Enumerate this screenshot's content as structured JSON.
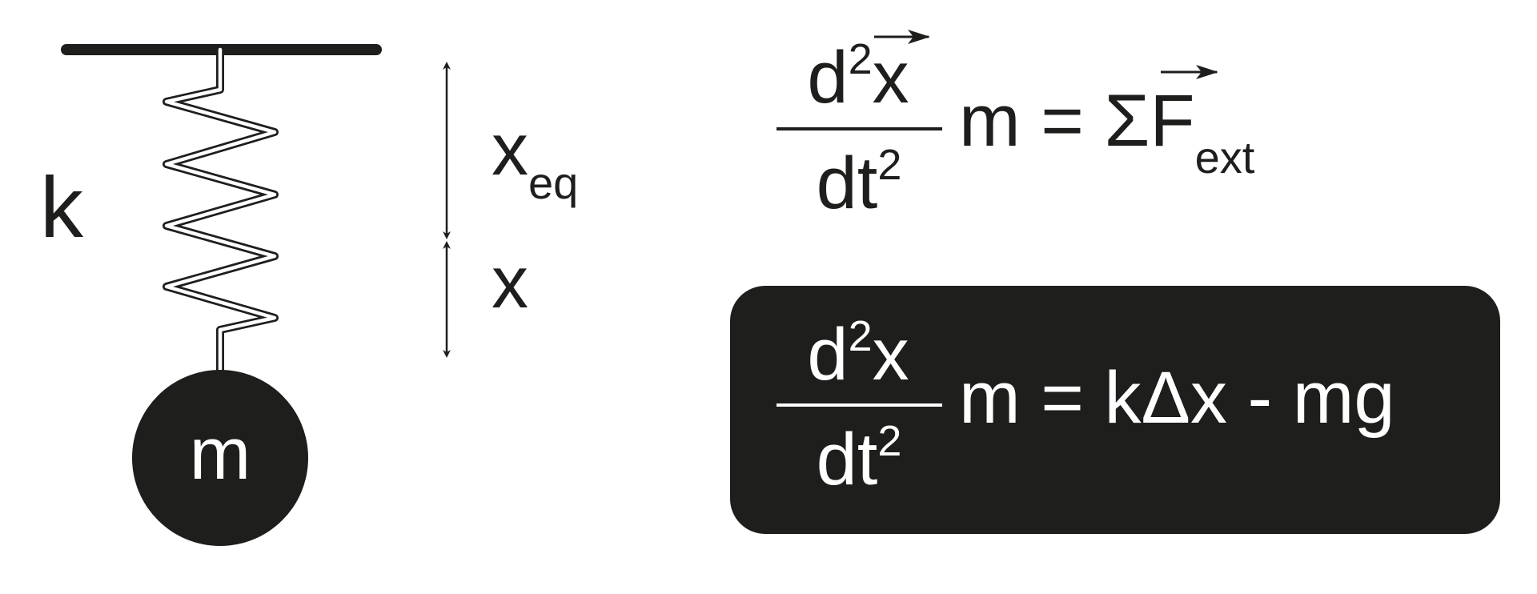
{
  "colors": {
    "ink": "#1e1e1c",
    "background": "#ffffff",
    "highlight_text": "#ffffff"
  },
  "diagram": {
    "spring_constant_label": "k",
    "mass_label": "m",
    "equilibrium_label": {
      "base": "x",
      "subscript": "eq"
    },
    "displacement_label": "x"
  },
  "equations": {
    "newton_second_law": {
      "numerator": {
        "d": "d",
        "power": "2",
        "var": "x"
      },
      "denominator": {
        "base": "dt",
        "power": "2"
      },
      "rhs": {
        "lead": "m = ",
        "sum": "Σ",
        "force": "F",
        "subscript": "ext"
      }
    },
    "boxed_equation": {
      "numerator": {
        "d": "d",
        "power": "2",
        "var": "x"
      },
      "denominator": {
        "base": "dt",
        "power": "2"
      },
      "rhs": "m = kΔx - mg"
    }
  }
}
